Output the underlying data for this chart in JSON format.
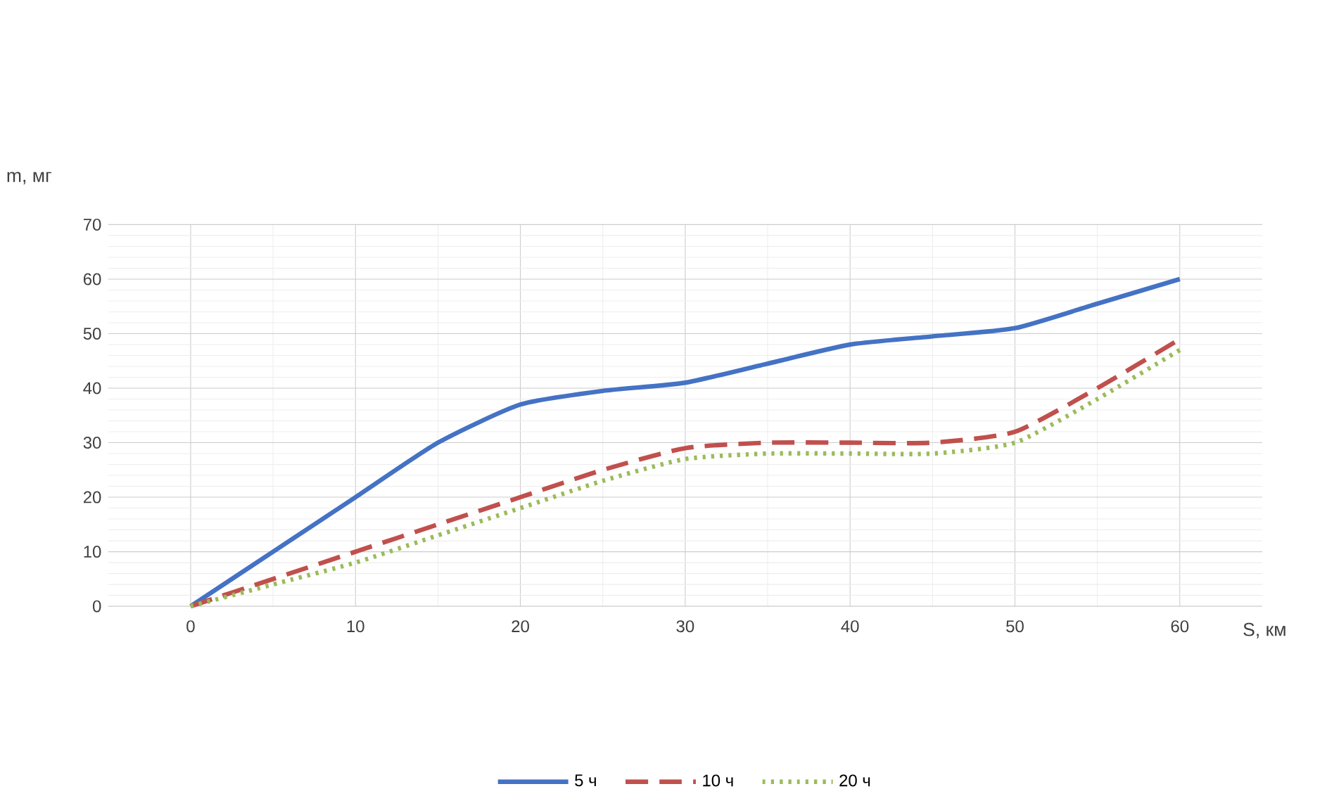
{
  "chart_data": {
    "type": "line",
    "xlabel": "S, км",
    "ylabel": "m, мг",
    "x": [
      0,
      5,
      10,
      15,
      20,
      25,
      30,
      35,
      40,
      45,
      50,
      55,
      60
    ],
    "series": [
      {
        "name": "5 ч",
        "color": "#4472c4",
        "line_style": "solid",
        "values": [
          0,
          10,
          20,
          30,
          37,
          39.5,
          41,
          44.5,
          48,
          49.5,
          51,
          55.5,
          60
        ]
      },
      {
        "name": "10 ч",
        "color": "#c0504d",
        "line_style": "dashed",
        "values": [
          0,
          5,
          10,
          15,
          20,
          25,
          29,
          30,
          30,
          30,
          32,
          40,
          49
        ]
      },
      {
        "name": "20 ч",
        "color": "#9bbb59",
        "line_style": "dotted",
        "values": [
          0,
          4,
          8,
          13,
          18,
          23,
          27,
          28,
          28,
          28,
          30,
          38,
          47
        ]
      }
    ],
    "xlim": [
      -5,
      65
    ],
    "xticks": [
      0,
      10,
      20,
      30,
      40,
      50,
      60
    ],
    "ylim": [
      0,
      70
    ],
    "yticks": [
      0,
      10,
      20,
      30,
      40,
      50,
      60,
      70
    ],
    "grid": true,
    "legend": "bottom",
    "marker": "none"
  }
}
